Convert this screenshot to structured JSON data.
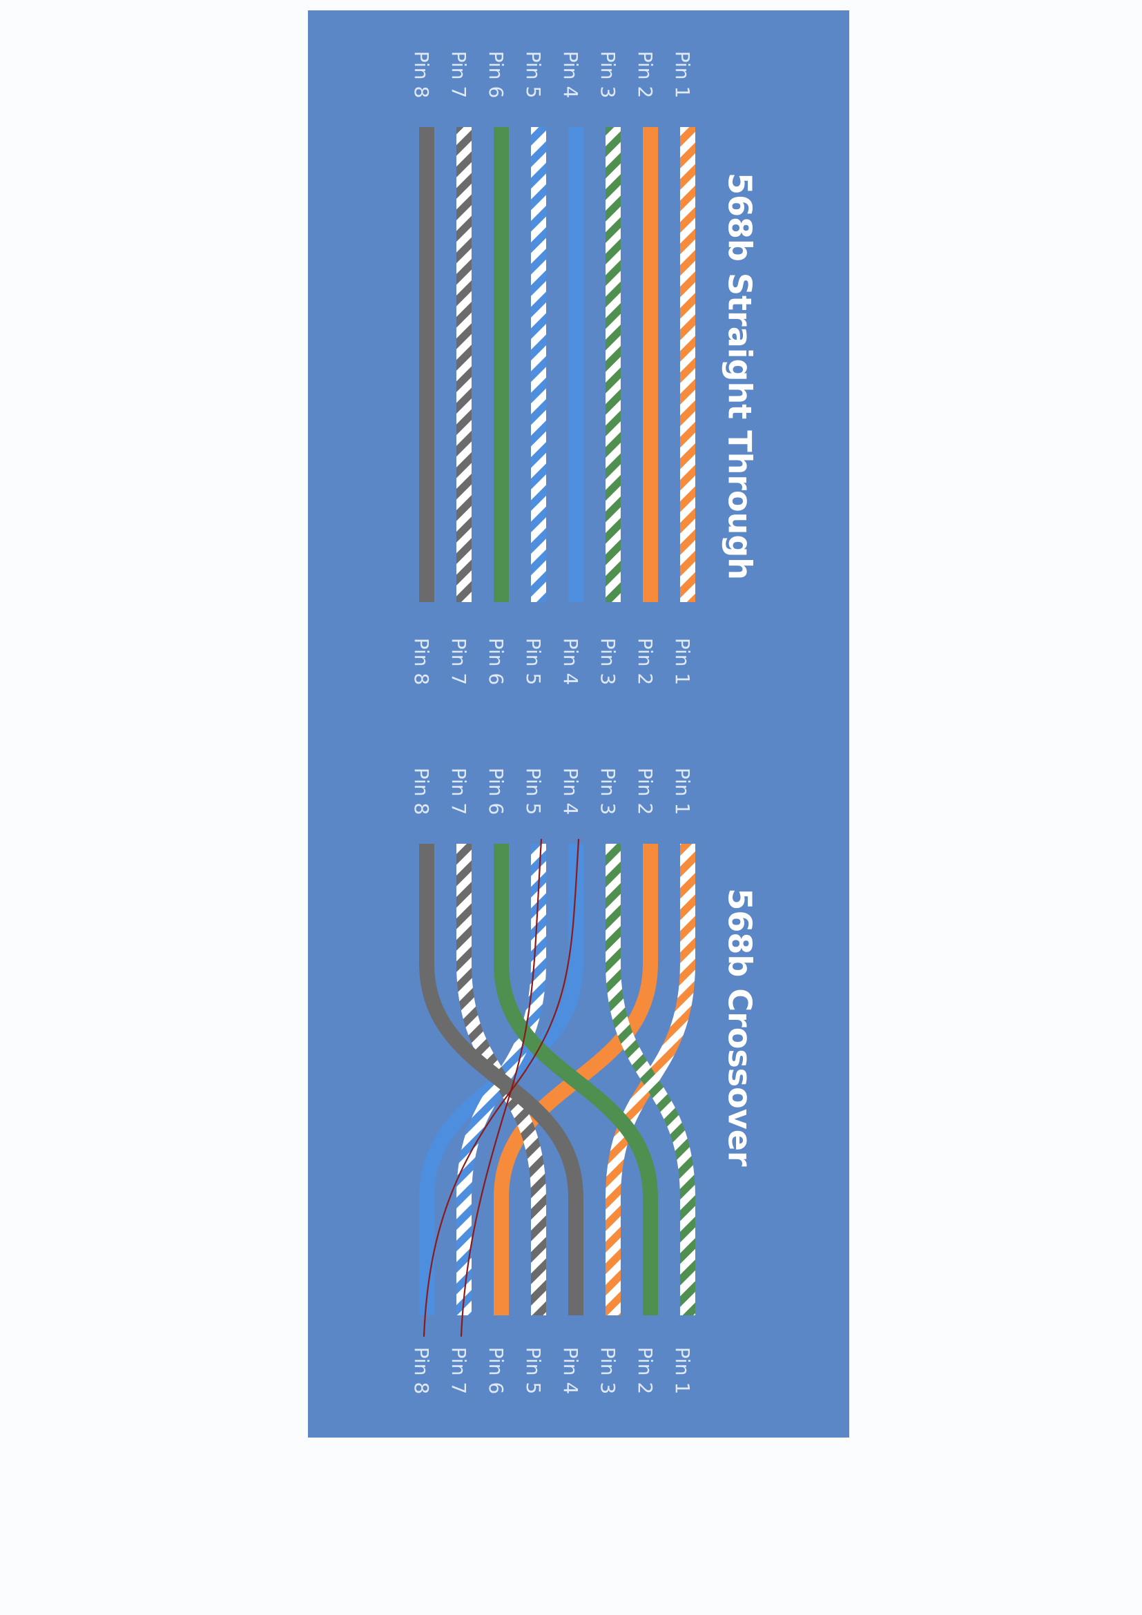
{
  "colors": {
    "panel": "#5b87c6",
    "paper": "#fbfcfe",
    "label": "#dfe9f7",
    "orange": "#f68b3c",
    "green": "#4f8f4f",
    "blue": "#4d8fde",
    "brown": "#6b6b6b",
    "stripe": "#ffffff",
    "pen": "#8b1a1a"
  },
  "straight": {
    "title": "568b Straight Through",
    "left_pins": [
      "Pin 1",
      "Pin 2",
      "Pin 3",
      "Pin 4",
      "Pin 5",
      "Pin 6",
      "Pin 7",
      "Pin 8"
    ],
    "right_pins": [
      "Pin 1",
      "Pin 2",
      "Pin 3",
      "Pin 4",
      "Pin 5",
      "Pin 6",
      "Pin 7",
      "Pin 8"
    ],
    "wires": [
      {
        "pin": 1,
        "color": "orange",
        "striped": true
      },
      {
        "pin": 2,
        "color": "orange",
        "striped": false
      },
      {
        "pin": 3,
        "color": "green",
        "striped": true
      },
      {
        "pin": 4,
        "color": "blue",
        "striped": false
      },
      {
        "pin": 5,
        "color": "blue",
        "striped": true
      },
      {
        "pin": 6,
        "color": "green",
        "striped": false
      },
      {
        "pin": 7,
        "color": "brown",
        "striped": true
      },
      {
        "pin": 8,
        "color": "brown",
        "striped": false
      }
    ]
  },
  "crossover": {
    "title": "568b Crossover",
    "left_pins": [
      "Pin 1",
      "Pin 2",
      "Pin 3",
      "Pin 4",
      "Pin 5",
      "Pin 6",
      "Pin 7",
      "Pin 8"
    ],
    "right_pins": [
      "Pin 1",
      "Pin 2",
      "Pin 3",
      "Pin 4",
      "Pin 5",
      "Pin 6",
      "Pin 7",
      "Pin 8"
    ],
    "wires": [
      {
        "from": 1,
        "to": 3,
        "color": "orange",
        "striped": true
      },
      {
        "from": 2,
        "to": 6,
        "color": "orange",
        "striped": false
      },
      {
        "from": 3,
        "to": 1,
        "color": "green",
        "striped": true
      },
      {
        "from": 4,
        "to": 8,
        "color": "blue",
        "striped": false
      },
      {
        "from": 5,
        "to": 7,
        "color": "blue",
        "striped": true
      },
      {
        "from": 6,
        "to": 2,
        "color": "green",
        "striped": false
      },
      {
        "from": 7,
        "to": 5,
        "color": "brown",
        "striped": true
      },
      {
        "from": 8,
        "to": 4,
        "color": "brown",
        "striped": false
      }
    ],
    "pen_marks": [
      {
        "from": 4,
        "to": 8
      },
      {
        "from": 5,
        "to": 7
      }
    ]
  }
}
